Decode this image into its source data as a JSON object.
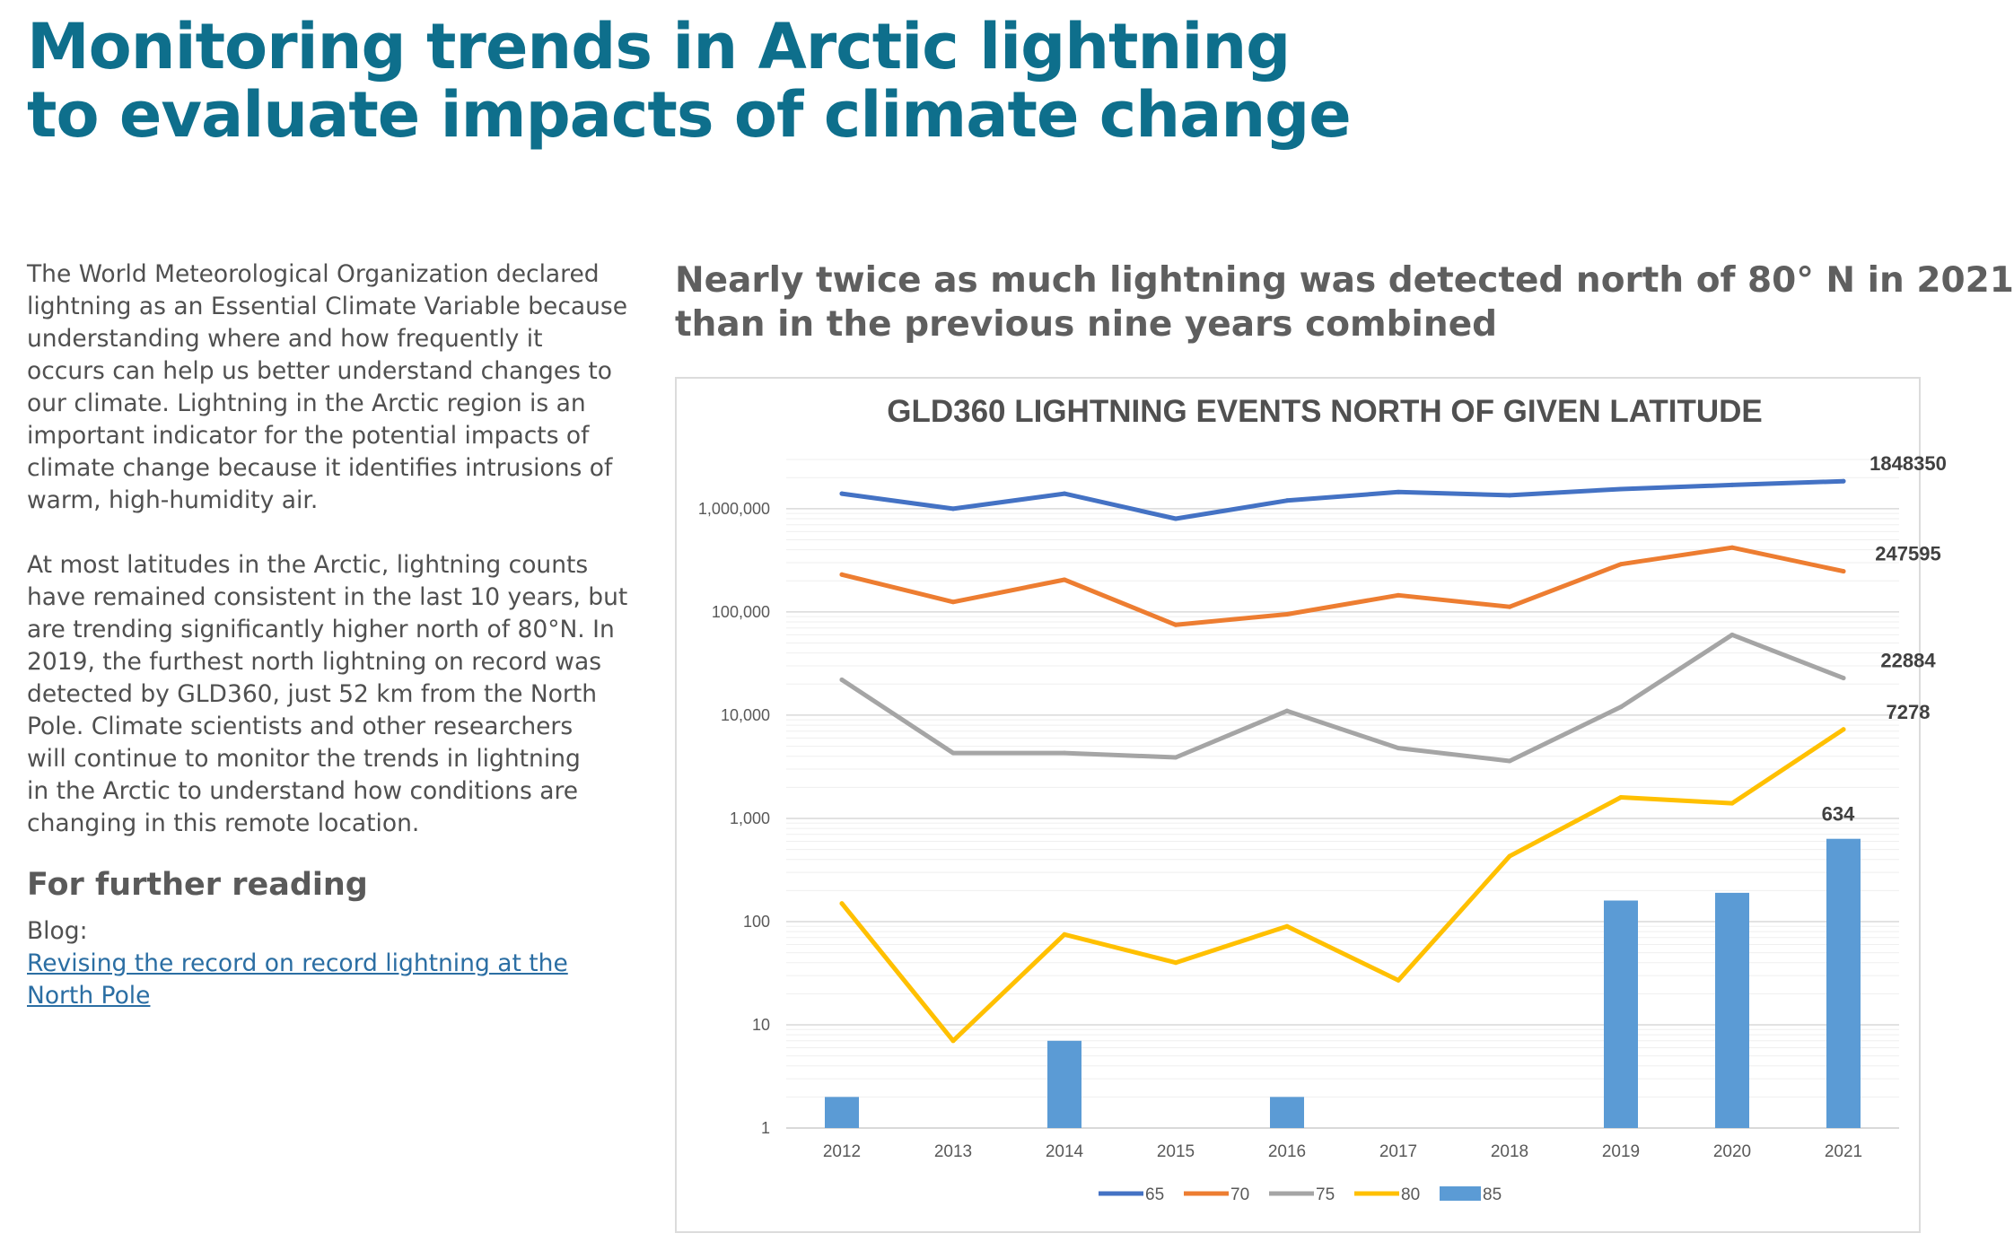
{
  "page": {
    "title_lines": [
      "Monitoring trends in Arctic lightning",
      "to evaluate impacts of climate change"
    ]
  },
  "left": {
    "paragraph1_lines": [
      "The World Meteorological Organization declared",
      "lightning as an Essential Climate Variable because",
      "understanding where and how frequently it",
      "occurs can help us better understand changes to",
      "our climate. Lightning in the Arctic region is an",
      "important indicator for the potential impacts of",
      "climate change because it identifies intrusions of",
      "warm, high-humidity air."
    ],
    "paragraph2_lines": [
      "At most latitudes in the Arctic, lightning counts",
      "have remained consistent in the last 10 years, but",
      "are trending significantly higher north of 80°N. In",
      "2019, the furthest north lightning on record was",
      "detected by GLD360, just 52 km from the North",
      "Pole. Climate scientists and other researchers",
      "will continue to monitor the trends in lightning",
      "in the Arctic to understand how conditions are",
      "changing in this remote location."
    ],
    "reading_heading": "For further reading",
    "blog_label": "Blog:",
    "blog_link_lines": [
      "Revising the record on record lightning at the",
      "North Pole"
    ]
  },
  "chart_headline_lines": [
    "Nearly twice as much lightning was detected north of 80° N in 2021",
    "than in the previous nine years combined"
  ],
  "chart_data": {
    "type": "line",
    "title": "GLD360 LIGHTNING EVENTS NORTH OF GIVEN LATITUDE",
    "xlabel": "",
    "ylabel": "",
    "yscale": "log",
    "ylim": [
      1,
      3000000
    ],
    "x": [
      "2012",
      "2013",
      "2014",
      "2015",
      "2016",
      "2017",
      "2018",
      "2019",
      "2020",
      "2021"
    ],
    "y_ticks": [
      {
        "value": 1,
        "label": "1"
      },
      {
        "value": 10,
        "label": "10"
      },
      {
        "value": 100,
        "label": "100"
      },
      {
        "value": 1000,
        "label": "1,000"
      },
      {
        "value": 10000,
        "label": "10,000"
      },
      {
        "value": 100000,
        "label": "100,000"
      },
      {
        "value": 1000000,
        "label": "1,000,000"
      }
    ],
    "grid": true,
    "legend_position": "bottom",
    "series": [
      {
        "name": "65",
        "type": "line",
        "color": "#4472c4",
        "values": [
          1400000,
          1000000,
          1400000,
          800000,
          1200000,
          1450000,
          1350000,
          1550000,
          1700000,
          1848350
        ],
        "end_label": "1848350"
      },
      {
        "name": "70",
        "type": "line",
        "color": "#ed7d31",
        "values": [
          230000,
          125000,
          205000,
          75000,
          95000,
          145000,
          112000,
          290000,
          420000,
          247595
        ],
        "end_label": "247595"
      },
      {
        "name": "75",
        "type": "line",
        "color": "#a5a5a5",
        "values": [
          22000,
          4300,
          4300,
          3900,
          11000,
          4800,
          3600,
          12000,
          60000,
          22884
        ],
        "end_label": "22884"
      },
      {
        "name": "80",
        "type": "line",
        "color": "#ffc000",
        "values": [
          150,
          7,
          75,
          40,
          90,
          27,
          430,
          1600,
          1400,
          7278
        ],
        "end_label": "7278"
      },
      {
        "name": "85",
        "type": "bar",
        "color": "#5b9bd5",
        "values": [
          2,
          null,
          7,
          null,
          2,
          null,
          null,
          160,
          190,
          634
        ],
        "end_label": "634"
      }
    ]
  }
}
